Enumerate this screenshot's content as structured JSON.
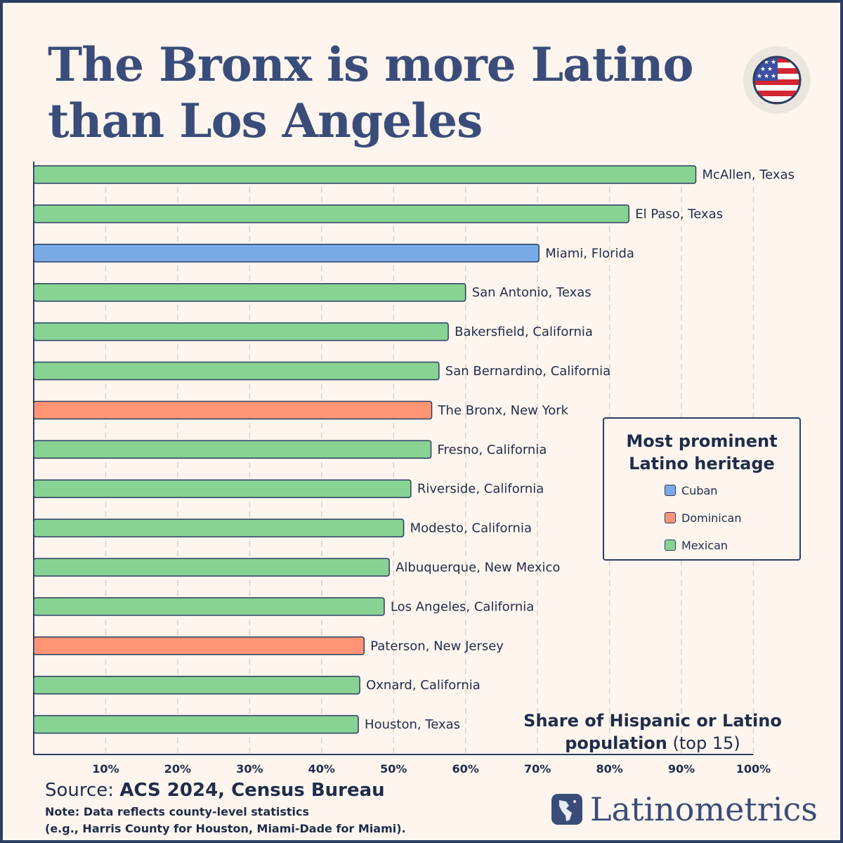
{
  "title": "The Bronx is more Latino than Los Angeles",
  "colors": {
    "Cuban": "#7aaae6",
    "Dominican": "#ff9575",
    "Mexican": "#88d393",
    "outline": "#2c3e63",
    "grid": "#d9d2cc"
  },
  "legend": {
    "title": "Most prominent Latino heritage",
    "items": [
      "Cuban",
      "Dominican",
      "Mexican"
    ]
  },
  "axis_title": {
    "bold": "Share of Hispanic or Latino population",
    "rest": "(top 15)"
  },
  "source": {
    "prefix": "Source:",
    "value": "ACS 2024, Census Bureau"
  },
  "note": {
    "line1": "Note: Data reflects county-level statistics",
    "line2": "(e.g., Harris County for Houston, Miami-Dade for Miami)."
  },
  "brand": "Latinometrics",
  "flag_icon": "us-flag-icon",
  "chart_data": {
    "type": "bar",
    "orientation": "horizontal",
    "title": "The Bronx is more Latino than Los Angeles",
    "xlabel": "Share of Hispanic or Latino population (top 15)",
    "xlim": [
      0,
      100
    ],
    "xticks": [
      "10%",
      "20%",
      "30%",
      "40%",
      "50%",
      "60%",
      "70%",
      "80%",
      "90%",
      "100%"
    ],
    "grid": true,
    "legend_position": "right",
    "categories": [
      "McAllen, Texas",
      "El Paso, Texas",
      "Miami, Florida",
      "San Antonio, Texas",
      "Bakersfield, California",
      "San Bernardino, California",
      "The Bronx, New York",
      "Fresno, California",
      "Riverside, California",
      "Modesto, California",
      "Albuquerque, New Mexico",
      "Los Angeles, California",
      "Paterson, New Jersey",
      "Oxnard, California",
      "Houston, Texas"
    ],
    "values": [
      92.0,
      82.7,
      70.2,
      60.0,
      57.6,
      56.3,
      55.3,
      55.2,
      52.4,
      51.4,
      49.4,
      48.7,
      45.9,
      45.3,
      45.1
    ],
    "heritage": [
      "Mexican",
      "Mexican",
      "Cuban",
      "Mexican",
      "Mexican",
      "Mexican",
      "Dominican",
      "Mexican",
      "Mexican",
      "Mexican",
      "Mexican",
      "Mexican",
      "Dominican",
      "Mexican",
      "Mexican"
    ]
  }
}
